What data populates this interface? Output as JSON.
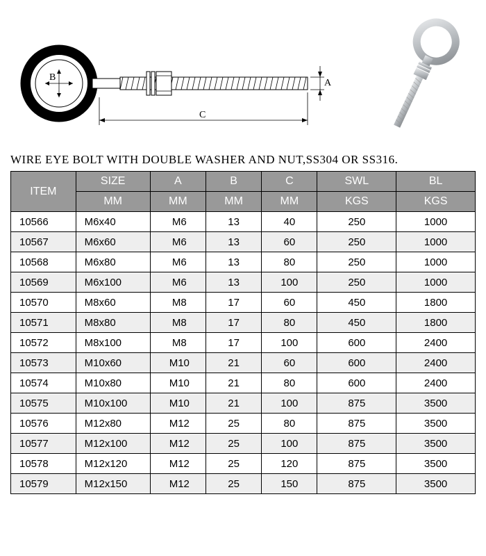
{
  "title": "WIRE EYE BOLT WITH DOUBLE WASHER AND NUT,SS304 OR SS316.",
  "diagram": {
    "label_a": "A",
    "label_b": "B",
    "label_c": "C",
    "stroke": "#000000",
    "fill": "#ffffff",
    "thread_color": "#888888",
    "photo_metal": "#c0c4c8",
    "photo_shadow": "#7a7f84"
  },
  "table": {
    "header_bg": "#999999",
    "header_fg": "#ffffff",
    "row_alt_bg": "#eeeeee",
    "border": "#000000",
    "columns_top": [
      "ITEM",
      "SIZE",
      "A",
      "B",
      "C",
      "SWL",
      "BL"
    ],
    "columns_sub": [
      "MM",
      "MM",
      "MM",
      "MM",
      "KGS",
      "KGS"
    ],
    "col_widths": [
      "14%",
      "16%",
      "12%",
      "12%",
      "12%",
      "17%",
      "17%"
    ],
    "rows": [
      [
        "10566",
        "M6x40",
        "M6",
        "13",
        "40",
        "250",
        "1000"
      ],
      [
        "10567",
        "M6x60",
        "M6",
        "13",
        "60",
        "250",
        "1000"
      ],
      [
        "10568",
        "M6x80",
        "M6",
        "13",
        "80",
        "250",
        "1000"
      ],
      [
        "10569",
        "M6x100",
        "M6",
        "13",
        "100",
        "250",
        "1000"
      ],
      [
        "10570",
        "M8x60",
        "M8",
        "17",
        "60",
        "450",
        "1800"
      ],
      [
        "10571",
        "M8x80",
        "M8",
        "17",
        "80",
        "450",
        "1800"
      ],
      [
        "10572",
        "M8x100",
        "M8",
        "17",
        "100",
        "600",
        "2400"
      ],
      [
        "10573",
        "M10x60",
        "M10",
        "21",
        "60",
        "600",
        "2400"
      ],
      [
        "10574",
        "M10x80",
        "M10",
        "21",
        "80",
        "600",
        "2400"
      ],
      [
        "10575",
        "M10x100",
        "M10",
        "21",
        "100",
        "875",
        "3500"
      ],
      [
        "10576",
        "M12x80",
        "M12",
        "25",
        "80",
        "875",
        "3500"
      ],
      [
        "10577",
        "M12x100",
        "M12",
        "25",
        "100",
        "875",
        "3500"
      ],
      [
        "10578",
        "M12x120",
        "M12",
        "25",
        "120",
        "875",
        "3500"
      ],
      [
        "10579",
        "M12x150",
        "M12",
        "25",
        "150",
        "875",
        "3500"
      ]
    ]
  }
}
